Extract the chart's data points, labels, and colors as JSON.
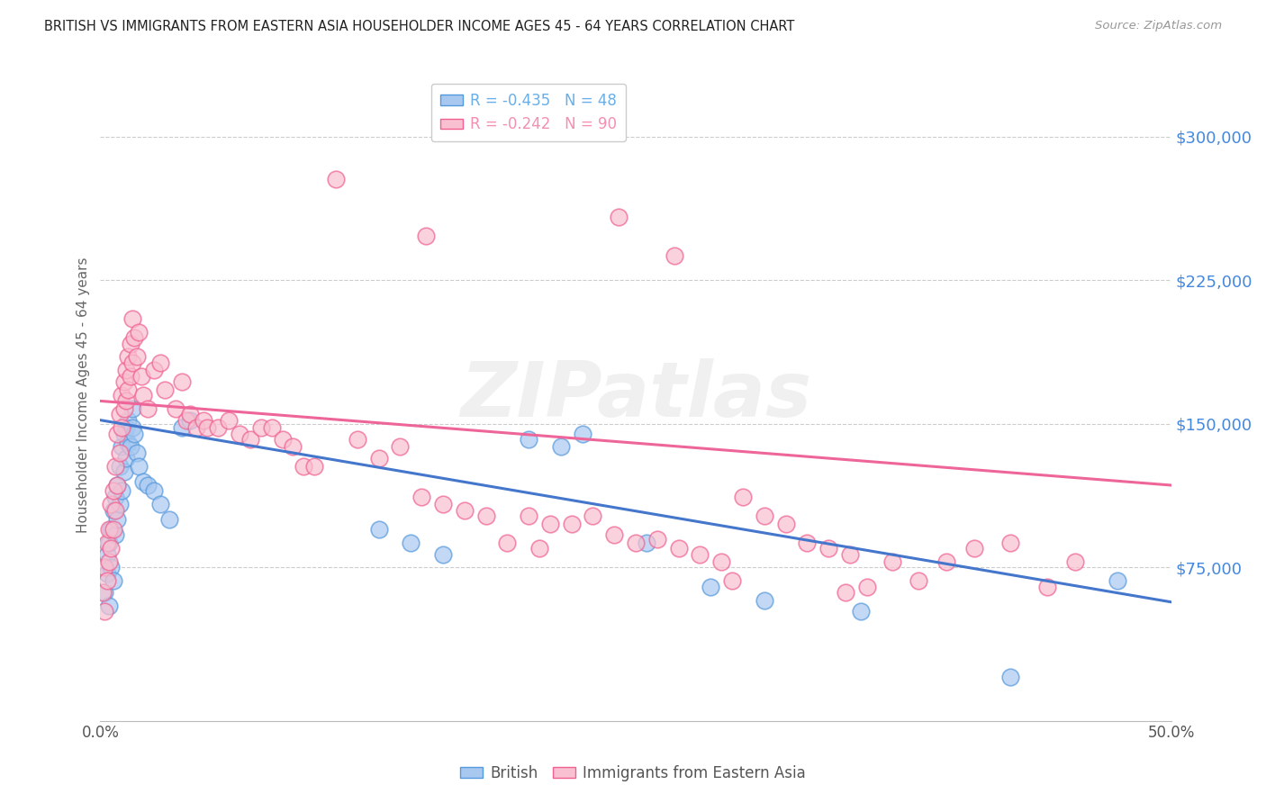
{
  "title": "BRITISH VS IMMIGRANTS FROM EASTERN ASIA HOUSEHOLDER INCOME AGES 45 - 64 YEARS CORRELATION CHART",
  "source": "Source: ZipAtlas.com",
  "ylabel": "Householder Income Ages 45 - 64 years",
  "xlim": [
    0.0,
    0.5
  ],
  "ylim": [
    -5000,
    335000
  ],
  "yticks": [
    75000,
    150000,
    225000,
    300000
  ],
  "ytick_labels": [
    "$75,000",
    "$150,000",
    "$225,000",
    "$300,000"
  ],
  "xticks": [
    0.0,
    0.1,
    0.2,
    0.3,
    0.4,
    0.5
  ],
  "xtick_labels": [
    "0.0%",
    "",
    "",
    "",
    "",
    "50.0%"
  ],
  "legend_entries": [
    {
      "label": "R = -0.435   N = 48",
      "color": "#6AAEE8"
    },
    {
      "label": "R = -0.242   N = 90",
      "color": "#F48FB1"
    }
  ],
  "watermark": "ZIPatlas",
  "blue_fill": "#A8C8F0",
  "blue_edge": "#5599DD",
  "pink_fill": "#F8C0D0",
  "pink_edge": "#F06090",
  "line_blue": "#4477CC",
  "line_pink": "#EE6699",
  "british_line": {
    "x0": 0.0,
    "y0": 152000,
    "x1": 0.5,
    "y1": 57000
  },
  "eastern_line": {
    "x0": 0.0,
    "y0": 162000,
    "x1": 0.5,
    "y1": 118000
  },
  "british_points": [
    [
      0.002,
      62000
    ],
    [
      0.003,
      72000
    ],
    [
      0.003,
      82000
    ],
    [
      0.004,
      55000
    ],
    [
      0.004,
      88000
    ],
    [
      0.005,
      75000
    ],
    [
      0.005,
      95000
    ],
    [
      0.006,
      68000
    ],
    [
      0.006,
      105000
    ],
    [
      0.007,
      92000
    ],
    [
      0.007,
      112000
    ],
    [
      0.008,
      100000
    ],
    [
      0.008,
      118000
    ],
    [
      0.009,
      108000
    ],
    [
      0.009,
      128000
    ],
    [
      0.01,
      115000
    ],
    [
      0.01,
      138000
    ],
    [
      0.011,
      125000
    ],
    [
      0.011,
      145000
    ],
    [
      0.012,
      132000
    ],
    [
      0.012,
      148000
    ],
    [
      0.013,
      140000
    ],
    [
      0.013,
      152000
    ],
    [
      0.014,
      138000
    ],
    [
      0.015,
      148000
    ],
    [
      0.015,
      158000
    ],
    [
      0.016,
      145000
    ],
    [
      0.017,
      135000
    ],
    [
      0.018,
      128000
    ],
    [
      0.02,
      120000
    ],
    [
      0.022,
      118000
    ],
    [
      0.025,
      115000
    ],
    [
      0.028,
      108000
    ],
    [
      0.032,
      100000
    ],
    [
      0.038,
      148000
    ],
    [
      0.042,
      152000
    ],
    [
      0.13,
      95000
    ],
    [
      0.145,
      88000
    ],
    [
      0.16,
      82000
    ],
    [
      0.2,
      142000
    ],
    [
      0.215,
      138000
    ],
    [
      0.225,
      145000
    ],
    [
      0.255,
      88000
    ],
    [
      0.285,
      65000
    ],
    [
      0.31,
      58000
    ],
    [
      0.355,
      52000
    ],
    [
      0.425,
      18000
    ],
    [
      0.475,
      68000
    ]
  ],
  "eastern_asia_points": [
    [
      0.001,
      62000
    ],
    [
      0.002,
      52000
    ],
    [
      0.002,
      75000
    ],
    [
      0.003,
      68000
    ],
    [
      0.003,
      88000
    ],
    [
      0.004,
      78000
    ],
    [
      0.004,
      95000
    ],
    [
      0.005,
      85000
    ],
    [
      0.005,
      108000
    ],
    [
      0.006,
      95000
    ],
    [
      0.006,
      115000
    ],
    [
      0.007,
      105000
    ],
    [
      0.007,
      128000
    ],
    [
      0.008,
      118000
    ],
    [
      0.008,
      145000
    ],
    [
      0.009,
      135000
    ],
    [
      0.009,
      155000
    ],
    [
      0.01,
      148000
    ],
    [
      0.01,
      165000
    ],
    [
      0.011,
      158000
    ],
    [
      0.011,
      172000
    ],
    [
      0.012,
      162000
    ],
    [
      0.012,
      178000
    ],
    [
      0.013,
      168000
    ],
    [
      0.013,
      185000
    ],
    [
      0.014,
      175000
    ],
    [
      0.014,
      192000
    ],
    [
      0.015,
      182000
    ],
    [
      0.015,
      205000
    ],
    [
      0.016,
      195000
    ],
    [
      0.017,
      185000
    ],
    [
      0.018,
      198000
    ],
    [
      0.019,
      175000
    ],
    [
      0.02,
      165000
    ],
    [
      0.022,
      158000
    ],
    [
      0.025,
      178000
    ],
    [
      0.028,
      182000
    ],
    [
      0.03,
      168000
    ],
    [
      0.035,
      158000
    ],
    [
      0.038,
      172000
    ],
    [
      0.04,
      152000
    ],
    [
      0.042,
      155000
    ],
    [
      0.045,
      148000
    ],
    [
      0.048,
      152000
    ],
    [
      0.05,
      148000
    ],
    [
      0.055,
      148000
    ],
    [
      0.06,
      152000
    ],
    [
      0.065,
      145000
    ],
    [
      0.07,
      142000
    ],
    [
      0.075,
      148000
    ],
    [
      0.08,
      148000
    ],
    [
      0.085,
      142000
    ],
    [
      0.09,
      138000
    ],
    [
      0.095,
      128000
    ],
    [
      0.1,
      128000
    ],
    [
      0.11,
      278000
    ],
    [
      0.12,
      142000
    ],
    [
      0.13,
      132000
    ],
    [
      0.14,
      138000
    ],
    [
      0.15,
      112000
    ],
    [
      0.152,
      248000
    ],
    [
      0.16,
      108000
    ],
    [
      0.17,
      105000
    ],
    [
      0.18,
      102000
    ],
    [
      0.19,
      88000
    ],
    [
      0.2,
      102000
    ],
    [
      0.205,
      85000
    ],
    [
      0.21,
      98000
    ],
    [
      0.22,
      98000
    ],
    [
      0.23,
      102000
    ],
    [
      0.24,
      92000
    ],
    [
      0.242,
      258000
    ],
    [
      0.25,
      88000
    ],
    [
      0.26,
      90000
    ],
    [
      0.268,
      238000
    ],
    [
      0.27,
      85000
    ],
    [
      0.28,
      82000
    ],
    [
      0.29,
      78000
    ],
    [
      0.295,
      68000
    ],
    [
      0.3,
      112000
    ],
    [
      0.31,
      102000
    ],
    [
      0.32,
      98000
    ],
    [
      0.33,
      88000
    ],
    [
      0.34,
      85000
    ],
    [
      0.348,
      62000
    ],
    [
      0.35,
      82000
    ],
    [
      0.358,
      65000
    ],
    [
      0.37,
      78000
    ],
    [
      0.382,
      68000
    ],
    [
      0.395,
      78000
    ],
    [
      0.408,
      85000
    ],
    [
      0.425,
      88000
    ],
    [
      0.442,
      65000
    ],
    [
      0.455,
      78000
    ]
  ]
}
